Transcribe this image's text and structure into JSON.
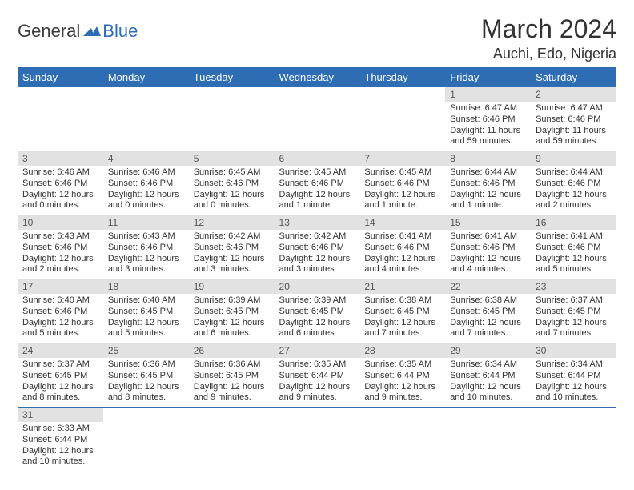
{
  "brand": {
    "part1": "General",
    "part2": "Blue"
  },
  "header": {
    "month_title": "March 2024",
    "location": "Auchi, Edo, Nigeria"
  },
  "colors": {
    "accent": "#2E6DB4",
    "daynum_bg": "#e2e2e2",
    "text": "#333333"
  },
  "dow": [
    "Sunday",
    "Monday",
    "Tuesday",
    "Wednesday",
    "Thursday",
    "Friday",
    "Saturday"
  ],
  "weeks": [
    [
      {
        "n": "",
        "sr": "",
        "ss": "",
        "dl": ""
      },
      {
        "n": "",
        "sr": "",
        "ss": "",
        "dl": ""
      },
      {
        "n": "",
        "sr": "",
        "ss": "",
        "dl": ""
      },
      {
        "n": "",
        "sr": "",
        "ss": "",
        "dl": ""
      },
      {
        "n": "",
        "sr": "",
        "ss": "",
        "dl": ""
      },
      {
        "n": "1",
        "sr": "Sunrise: 6:47 AM",
        "ss": "Sunset: 6:46 PM",
        "dl": "Daylight: 11 hours and 59 minutes."
      },
      {
        "n": "2",
        "sr": "Sunrise: 6:47 AM",
        "ss": "Sunset: 6:46 PM",
        "dl": "Daylight: 11 hours and 59 minutes."
      }
    ],
    [
      {
        "n": "3",
        "sr": "Sunrise: 6:46 AM",
        "ss": "Sunset: 6:46 PM",
        "dl": "Daylight: 12 hours and 0 minutes."
      },
      {
        "n": "4",
        "sr": "Sunrise: 6:46 AM",
        "ss": "Sunset: 6:46 PM",
        "dl": "Daylight: 12 hours and 0 minutes."
      },
      {
        "n": "5",
        "sr": "Sunrise: 6:45 AM",
        "ss": "Sunset: 6:46 PM",
        "dl": "Daylight: 12 hours and 0 minutes."
      },
      {
        "n": "6",
        "sr": "Sunrise: 6:45 AM",
        "ss": "Sunset: 6:46 PM",
        "dl": "Daylight: 12 hours and 1 minute."
      },
      {
        "n": "7",
        "sr": "Sunrise: 6:45 AM",
        "ss": "Sunset: 6:46 PM",
        "dl": "Daylight: 12 hours and 1 minute."
      },
      {
        "n": "8",
        "sr": "Sunrise: 6:44 AM",
        "ss": "Sunset: 6:46 PM",
        "dl": "Daylight: 12 hours and 1 minute."
      },
      {
        "n": "9",
        "sr": "Sunrise: 6:44 AM",
        "ss": "Sunset: 6:46 PM",
        "dl": "Daylight: 12 hours and 2 minutes."
      }
    ],
    [
      {
        "n": "10",
        "sr": "Sunrise: 6:43 AM",
        "ss": "Sunset: 6:46 PM",
        "dl": "Daylight: 12 hours and 2 minutes."
      },
      {
        "n": "11",
        "sr": "Sunrise: 6:43 AM",
        "ss": "Sunset: 6:46 PM",
        "dl": "Daylight: 12 hours and 3 minutes."
      },
      {
        "n": "12",
        "sr": "Sunrise: 6:42 AM",
        "ss": "Sunset: 6:46 PM",
        "dl": "Daylight: 12 hours and 3 minutes."
      },
      {
        "n": "13",
        "sr": "Sunrise: 6:42 AM",
        "ss": "Sunset: 6:46 PM",
        "dl": "Daylight: 12 hours and 3 minutes."
      },
      {
        "n": "14",
        "sr": "Sunrise: 6:41 AM",
        "ss": "Sunset: 6:46 PM",
        "dl": "Daylight: 12 hours and 4 minutes."
      },
      {
        "n": "15",
        "sr": "Sunrise: 6:41 AM",
        "ss": "Sunset: 6:46 PM",
        "dl": "Daylight: 12 hours and 4 minutes."
      },
      {
        "n": "16",
        "sr": "Sunrise: 6:41 AM",
        "ss": "Sunset: 6:46 PM",
        "dl": "Daylight: 12 hours and 5 minutes."
      }
    ],
    [
      {
        "n": "17",
        "sr": "Sunrise: 6:40 AM",
        "ss": "Sunset: 6:46 PM",
        "dl": "Daylight: 12 hours and 5 minutes."
      },
      {
        "n": "18",
        "sr": "Sunrise: 6:40 AM",
        "ss": "Sunset: 6:45 PM",
        "dl": "Daylight: 12 hours and 5 minutes."
      },
      {
        "n": "19",
        "sr": "Sunrise: 6:39 AM",
        "ss": "Sunset: 6:45 PM",
        "dl": "Daylight: 12 hours and 6 minutes."
      },
      {
        "n": "20",
        "sr": "Sunrise: 6:39 AM",
        "ss": "Sunset: 6:45 PM",
        "dl": "Daylight: 12 hours and 6 minutes."
      },
      {
        "n": "21",
        "sr": "Sunrise: 6:38 AM",
        "ss": "Sunset: 6:45 PM",
        "dl": "Daylight: 12 hours and 7 minutes."
      },
      {
        "n": "22",
        "sr": "Sunrise: 6:38 AM",
        "ss": "Sunset: 6:45 PM",
        "dl": "Daylight: 12 hours and 7 minutes."
      },
      {
        "n": "23",
        "sr": "Sunrise: 6:37 AM",
        "ss": "Sunset: 6:45 PM",
        "dl": "Daylight: 12 hours and 7 minutes."
      }
    ],
    [
      {
        "n": "24",
        "sr": "Sunrise: 6:37 AM",
        "ss": "Sunset: 6:45 PM",
        "dl": "Daylight: 12 hours and 8 minutes."
      },
      {
        "n": "25",
        "sr": "Sunrise: 6:36 AM",
        "ss": "Sunset: 6:45 PM",
        "dl": "Daylight: 12 hours and 8 minutes."
      },
      {
        "n": "26",
        "sr": "Sunrise: 6:36 AM",
        "ss": "Sunset: 6:45 PM",
        "dl": "Daylight: 12 hours and 9 minutes."
      },
      {
        "n": "27",
        "sr": "Sunrise: 6:35 AM",
        "ss": "Sunset: 6:44 PM",
        "dl": "Daylight: 12 hours and 9 minutes."
      },
      {
        "n": "28",
        "sr": "Sunrise: 6:35 AM",
        "ss": "Sunset: 6:44 PM",
        "dl": "Daylight: 12 hours and 9 minutes."
      },
      {
        "n": "29",
        "sr": "Sunrise: 6:34 AM",
        "ss": "Sunset: 6:44 PM",
        "dl": "Daylight: 12 hours and 10 minutes."
      },
      {
        "n": "30",
        "sr": "Sunrise: 6:34 AM",
        "ss": "Sunset: 6:44 PM",
        "dl": "Daylight: 12 hours and 10 minutes."
      }
    ],
    [
      {
        "n": "31",
        "sr": "Sunrise: 6:33 AM",
        "ss": "Sunset: 6:44 PM",
        "dl": "Daylight: 12 hours and 10 minutes."
      },
      {
        "n": "",
        "sr": "",
        "ss": "",
        "dl": ""
      },
      {
        "n": "",
        "sr": "",
        "ss": "",
        "dl": ""
      },
      {
        "n": "",
        "sr": "",
        "ss": "",
        "dl": ""
      },
      {
        "n": "",
        "sr": "",
        "ss": "",
        "dl": ""
      },
      {
        "n": "",
        "sr": "",
        "ss": "",
        "dl": ""
      },
      {
        "n": "",
        "sr": "",
        "ss": "",
        "dl": ""
      }
    ]
  ]
}
